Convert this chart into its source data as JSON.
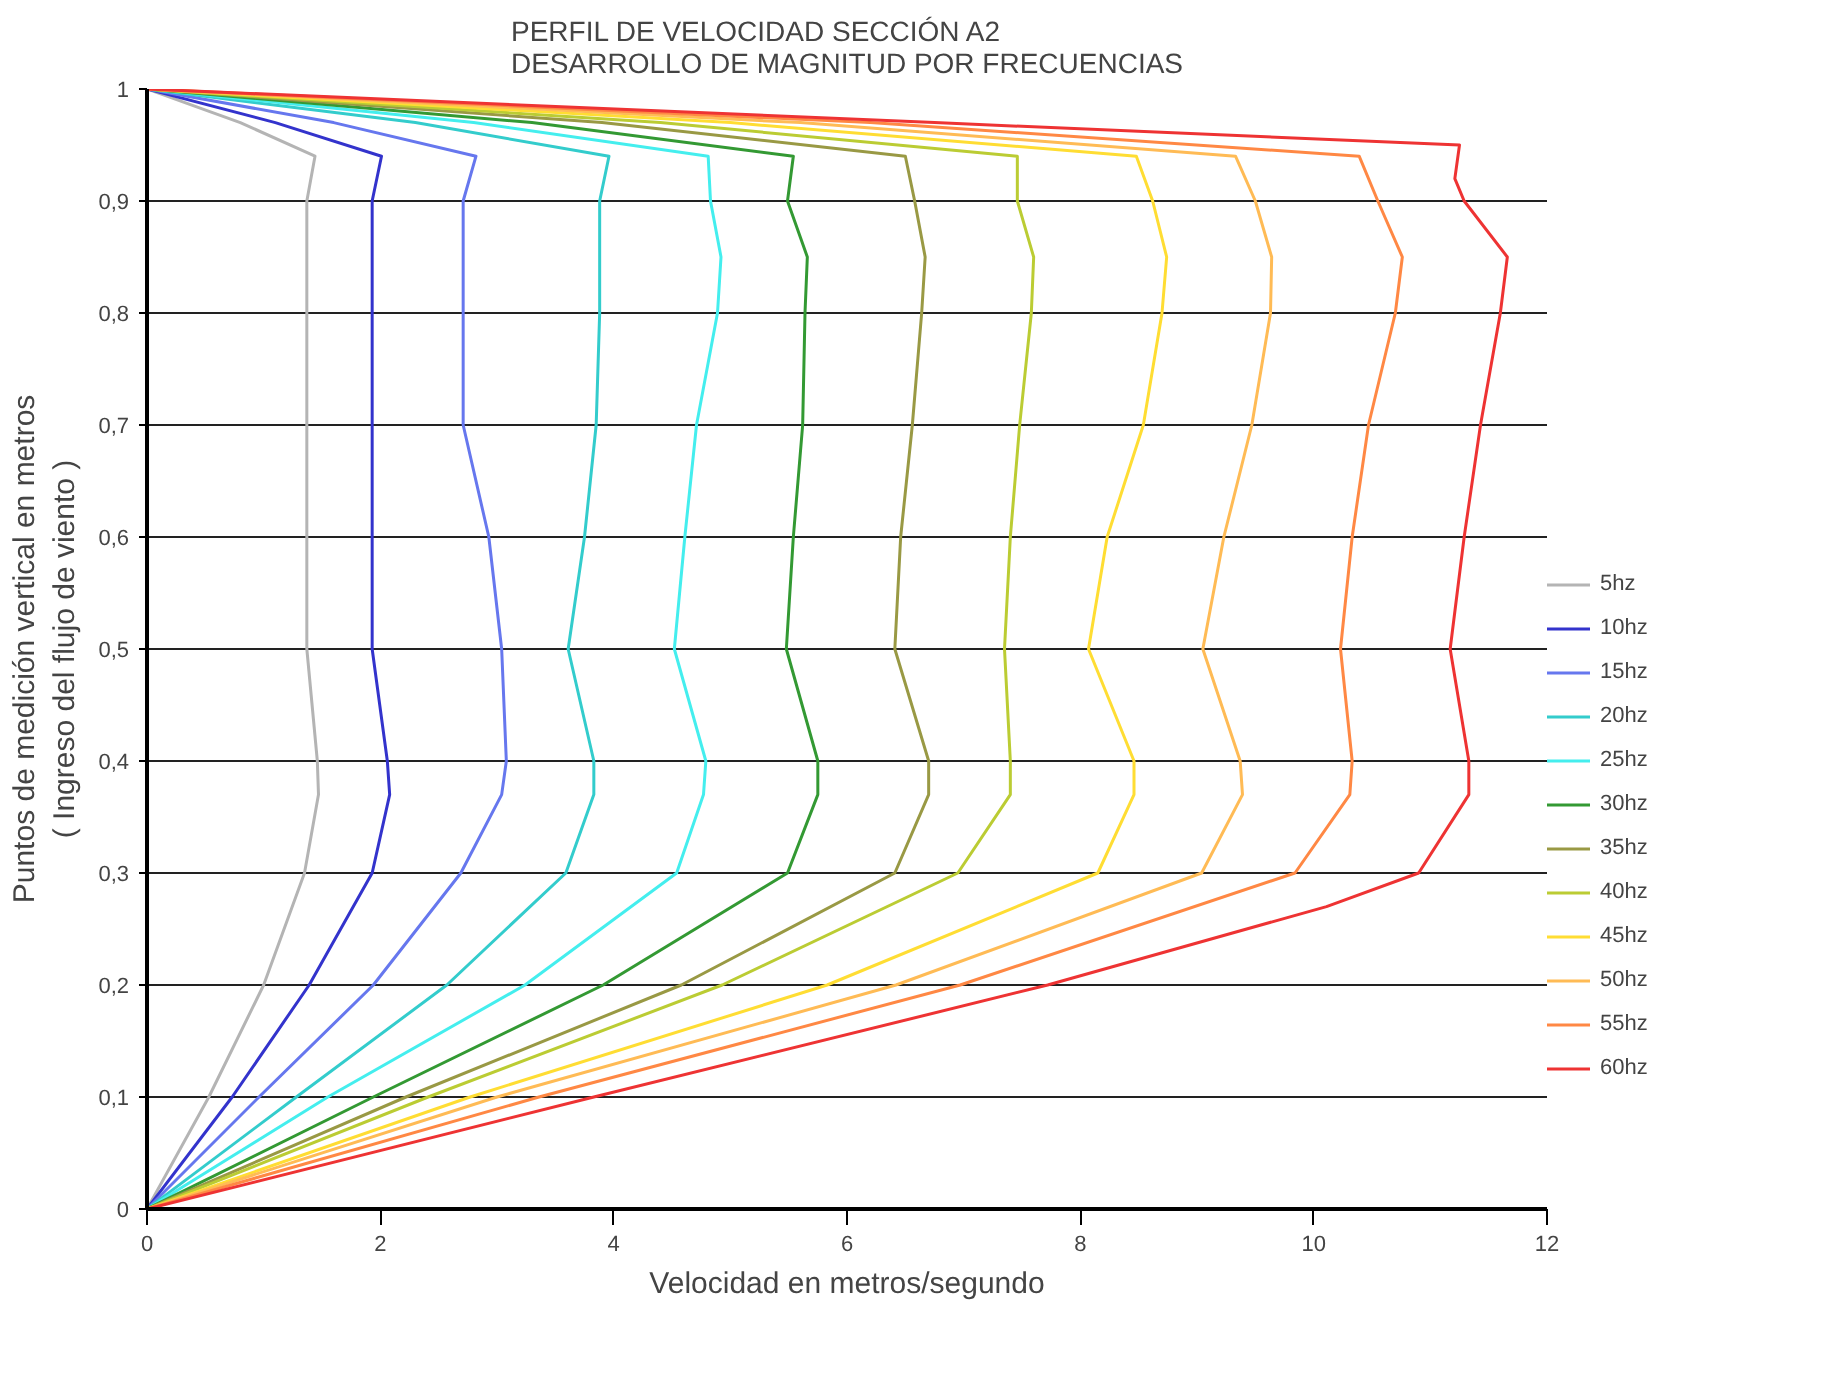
{
  "chart_data": {
    "type": "line",
    "title": "PERFIL DE VELOCIDAD SECCIÓN A2\nDESARROLLO DE MAGNITUD POR FRECUENCIAS",
    "xlabel": "Velocidad en metros/segundo",
    "ylabel": "Puntos de medición vertical en metros\n( Ingreso del flujo de viento )",
    "xlim": [
      0,
      12
    ],
    "xticks": [
      0,
      2,
      4,
      6,
      8,
      10,
      12
    ],
    "ylim": [
      0,
      1
    ],
    "yticks": [
      0,
      {
        "value": 0.1,
        "label": "0,1"
      },
      {
        "value": 0.2,
        "label": "0,2"
      },
      {
        "value": 0.3,
        "label": "0,3"
      },
      {
        "value": 0.4,
        "label": "0,4"
      },
      {
        "value": 0.5,
        "label": "0,5"
      },
      {
        "value": 0.6,
        "label": "0,6"
      },
      {
        "value": 0.7,
        "label": "0,7"
      },
      {
        "value": 0.8,
        "label": "0,8"
      },
      {
        "value": 0.9,
        "label": "0,9"
      },
      1
    ],
    "grid": "y",
    "legend": "right",
    "line_style": "solid",
    "series": [
      {
        "name": "5hz",
        "color": "#b4b4b4",
        "x": [
          0,
          0.53,
          1.0,
          1.35,
          1.47,
          1.46,
          1.37,
          1.37,
          1.37,
          1.37,
          1.37,
          1.37,
          1.44,
          0.8,
          0
        ],
        "values": [
          0,
          0.1,
          0.2,
          0.3,
          0.37,
          0.4,
          0.5,
          0.6,
          0.7,
          0.8,
          0.85,
          0.9,
          0.94,
          0.97,
          1
        ]
      },
      {
        "name": "10hz",
        "color": "#3333cc",
        "x": [
          0,
          0.73,
          1.39,
          1.93,
          2.08,
          2.06,
          1.93,
          1.93,
          1.93,
          1.93,
          1.93,
          1.93,
          2.01,
          1.1,
          0
        ],
        "values": [
          0,
          0.1,
          0.2,
          0.3,
          0.37,
          0.4,
          0.5,
          0.6,
          0.7,
          0.8,
          0.85,
          0.9,
          0.94,
          0.97,
          1
        ]
      },
      {
        "name": "15hz",
        "color": "#6677ee",
        "x": [
          0,
          0.96,
          1.94,
          2.69,
          3.04,
          3.08,
          3.04,
          2.93,
          2.71,
          2.71,
          2.71,
          2.71,
          2.82,
          1.6,
          0
        ],
        "values": [
          0,
          0.1,
          0.2,
          0.3,
          0.37,
          0.4,
          0.5,
          0.6,
          0.7,
          0.8,
          0.85,
          0.9,
          0.94,
          0.97,
          1
        ]
      },
      {
        "name": "20hz",
        "color": "#33cccc",
        "x": [
          0,
          1.28,
          2.57,
          3.59,
          3.83,
          3.83,
          3.61,
          3.75,
          3.85,
          3.88,
          3.88,
          3.88,
          3.96,
          2.3,
          0
        ],
        "values": [
          0,
          0.1,
          0.2,
          0.3,
          0.37,
          0.4,
          0.5,
          0.6,
          0.7,
          0.8,
          0.85,
          0.9,
          0.94,
          0.97,
          1
        ]
      },
      {
        "name": "25hz",
        "color": "#44eeee",
        "x": [
          0,
          1.55,
          3.24,
          4.54,
          4.77,
          4.79,
          4.52,
          4.61,
          4.71,
          4.89,
          4.92,
          4.83,
          4.81,
          2.8,
          0
        ],
        "values": [
          0,
          0.1,
          0.2,
          0.3,
          0.37,
          0.4,
          0.5,
          0.6,
          0.7,
          0.8,
          0.85,
          0.9,
          0.94,
          0.97,
          1
        ]
      },
      {
        "name": "30hz",
        "color": "#339933",
        "x": [
          0,
          1.94,
          3.91,
          5.49,
          5.75,
          5.75,
          5.48,
          5.54,
          5.62,
          5.64,
          5.66,
          5.49,
          5.54,
          3.3,
          0
        ],
        "values": [
          0,
          0.1,
          0.2,
          0.3,
          0.37,
          0.4,
          0.5,
          0.6,
          0.7,
          0.8,
          0.85,
          0.9,
          0.94,
          0.97,
          1
        ]
      },
      {
        "name": "35hz",
        "color": "#999944",
        "x": [
          0,
          2.22,
          4.58,
          6.41,
          6.7,
          6.7,
          6.41,
          6.46,
          6.56,
          6.64,
          6.67,
          6.58,
          6.5,
          3.9,
          0
        ],
        "values": [
          0,
          0.1,
          0.2,
          0.3,
          0.37,
          0.4,
          0.5,
          0.6,
          0.7,
          0.8,
          0.85,
          0.9,
          0.94,
          0.97,
          1
        ]
      },
      {
        "name": "40hz",
        "color": "#bbcc33",
        "x": [
          0,
          2.41,
          4.93,
          6.95,
          7.4,
          7.4,
          7.35,
          7.4,
          7.48,
          7.58,
          7.6,
          7.46,
          7.46,
          4.4,
          0
        ],
        "values": [
          0,
          0.1,
          0.2,
          0.3,
          0.37,
          0.4,
          0.5,
          0.6,
          0.7,
          0.8,
          0.85,
          0.9,
          0.94,
          0.97,
          1
        ]
      },
      {
        "name": "45hz",
        "color": "#ffdd33",
        "x": [
          0,
          2.77,
          5.83,
          8.15,
          8.46,
          8.46,
          8.07,
          8.23,
          8.54,
          8.7,
          8.74,
          8.62,
          8.48,
          5.0,
          0
        ],
        "values": [
          0,
          0.1,
          0.2,
          0.3,
          0.37,
          0.4,
          0.5,
          0.6,
          0.7,
          0.8,
          0.85,
          0.9,
          0.94,
          0.97,
          1
        ]
      },
      {
        "name": "50hz",
        "color": "#ffbb55",
        "x": [
          0,
          3.0,
          6.42,
          9.04,
          9.39,
          9.37,
          9.05,
          9.23,
          9.47,
          9.63,
          9.64,
          9.5,
          9.33,
          5.6,
          0
        ],
        "values": [
          0,
          0.1,
          0.2,
          0.3,
          0.37,
          0.4,
          0.5,
          0.6,
          0.7,
          0.8,
          0.85,
          0.9,
          0.94,
          0.97,
          1
        ]
      },
      {
        "name": "55hz",
        "color": "#ff8844",
        "x": [
          0,
          3.36,
          6.97,
          9.84,
          10.31,
          10.33,
          10.23,
          10.33,
          10.47,
          10.7,
          10.76,
          10.55,
          10.39,
          6.2,
          0
        ],
        "values": [
          0,
          0.1,
          0.2,
          0.3,
          0.37,
          0.4,
          0.5,
          0.6,
          0.7,
          0.8,
          0.85,
          0.9,
          0.94,
          0.97,
          1
        ]
      },
      {
        "name": "60hz",
        "color": "#ee3333",
        "x": [
          0,
          3.83,
          7.72,
          10.11,
          10.9,
          11.33,
          11.33,
          11.17,
          11.29,
          11.43,
          11.6,
          11.66,
          11.29,
          11.21,
          11.25,
          6.75,
          0
        ],
        "values": [
          0,
          0.1,
          0.2,
          0.27,
          0.3,
          0.37,
          0.4,
          0.5,
          0.6,
          0.7,
          0.8,
          0.85,
          0.9,
          0.92,
          0.95,
          0.97,
          1
        ]
      }
    ]
  }
}
